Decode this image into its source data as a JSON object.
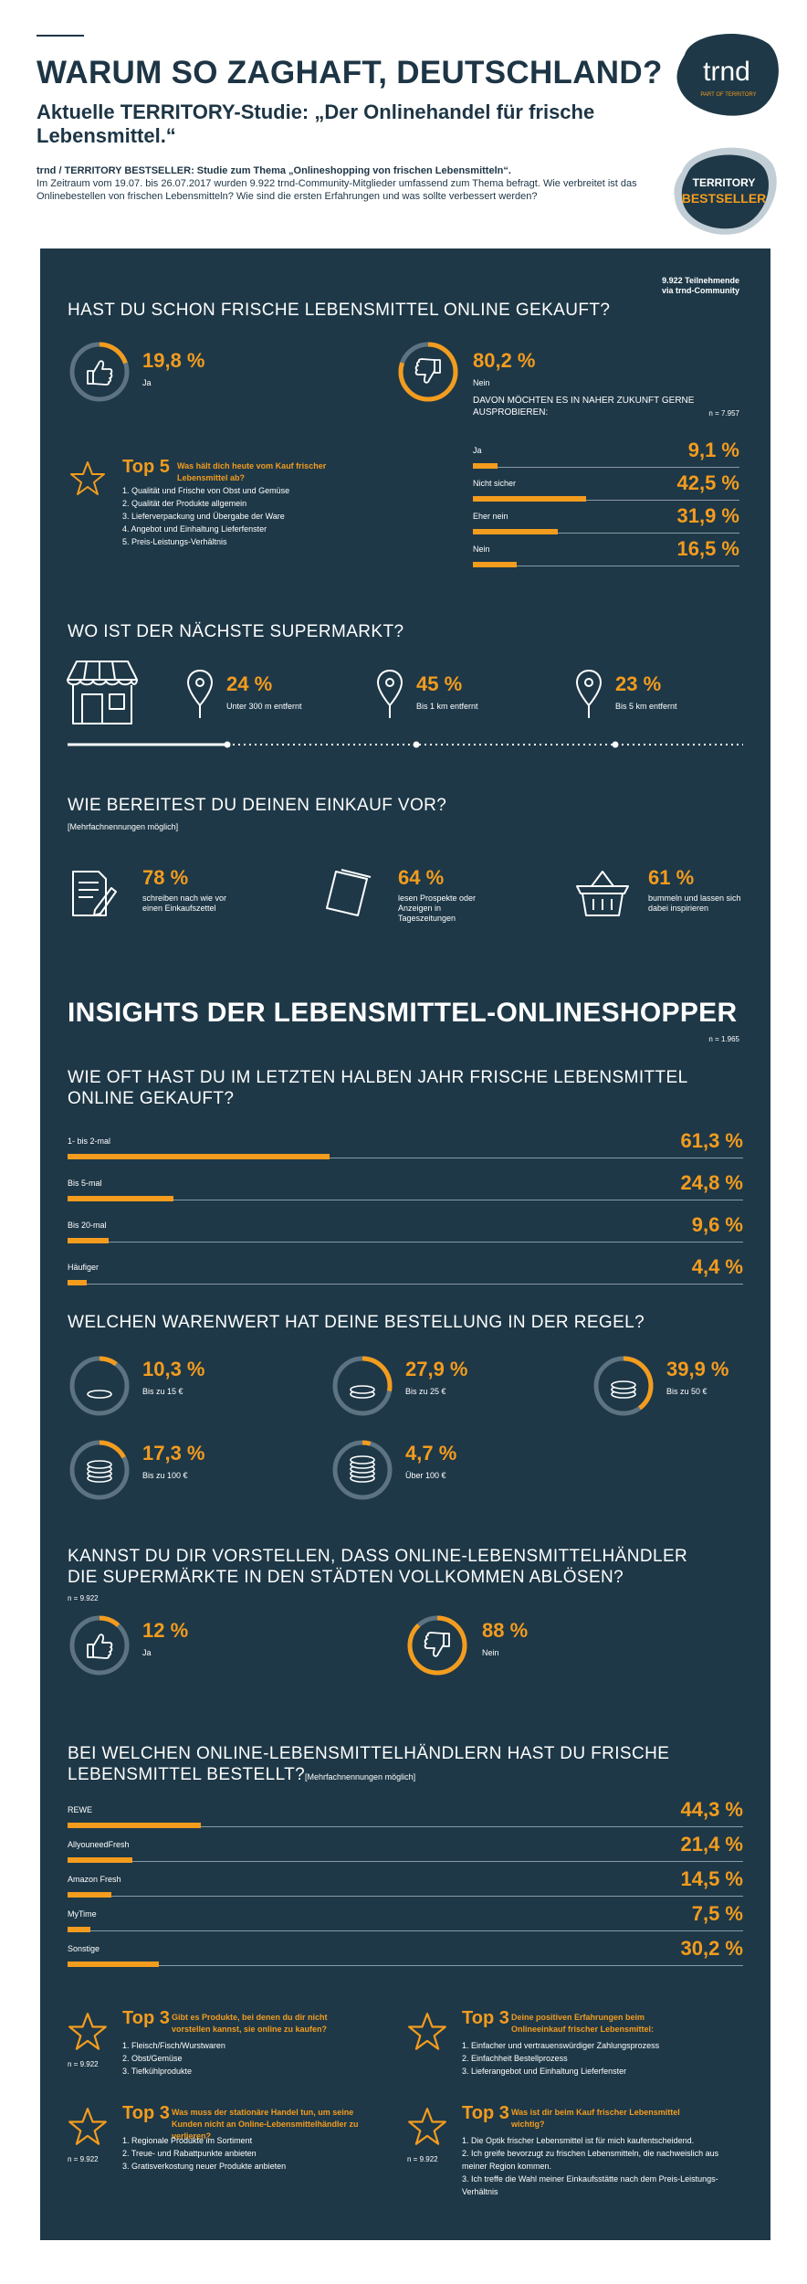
{
  "header": {
    "title": "WARUM SO ZAGHAFT, DEUTSCHLAND?",
    "subtitle": "Aktuelle TERRITORY-Studie: „Der Onlinehandel für frische Lebensmittel.“",
    "intro_bold": "trnd / TERRITORY BESTSELLER: Studie zum Thema „Onlineshopping von frischen Lebensmitteln“.",
    "intro_text": "Im Zeitraum vom 19.07. bis 26.07.2017 wurden 9.922 trnd-Community-Mitglieder umfassend zum Thema befragt. Wie verbreitet ist das Onlinebestellen von frischen Lebensmitteln? Wie sind die ersten Erfahrungen und was sollte verbessert werden?",
    "logo_trnd": "trnd",
    "logo_trnd_sub": "PART OF TERRITORY",
    "logo_territory_1": "TERRITORY",
    "logo_territory_2": "BESTSELLER"
  },
  "participants": {
    "line1": "9.922 Teilnehmende",
    "line2": "via trnd-Community"
  },
  "q1": {
    "title": "HAST DU SCHON FRISCHE LEBENSMITTEL ONLINE GEKAUFT?",
    "yes_pct": "19,8 %",
    "yes_label": "Ja",
    "yes_value": 19.8,
    "no_pct": "80,2 %",
    "no_label": "Nein",
    "no_value": 80.2,
    "future_title": "DAVON MÖCHTEN ES IN NAHER ZUKUNFT GERNE AUSPROBIEREN:",
    "future_n": "n = 7.957",
    "future": [
      {
        "label": "Ja",
        "pct": "9,1 %",
        "value": 9.1
      },
      {
        "label": "Nicht sicher",
        "pct": "42,5 %",
        "value": 42.5
      },
      {
        "label": "Eher nein",
        "pct": "31,9 %",
        "value": 31.9
      },
      {
        "label": "Nein",
        "pct": "16,5 %",
        "value": 16.5
      }
    ],
    "top5_title": "Top 5",
    "top5_q": "Was hält dich heute vom Kauf frischer Lebensmittel ab?",
    "top5_items": [
      "1. Qualität und Frische von Obst und Gemüse",
      "2. Qualität der Produkte allgemein",
      "3. Lieferverpackung und Übergabe der Ware",
      "4. Angebot und Einhaltung Lieferfenster",
      "5. Preis-Leistungs-Verhältnis"
    ]
  },
  "q2": {
    "title": "WO IST DER NÄCHSTE SUPERMARKT?",
    "items": [
      {
        "pct": "24 %",
        "label": "Unter 300 m entfernt"
      },
      {
        "pct": "45 %",
        "label": "Bis 1 km entfernt"
      },
      {
        "pct": "23 %",
        "label": "Bis 5 km entfernt"
      }
    ]
  },
  "q3": {
    "title": "WIE BEREITEST DU DEINEN EINKAUF VOR?",
    "note": "[Mehrfachnennungen möglich]",
    "items": [
      {
        "pct": "78 %",
        "label": "schreiben nach wie vor einen Einkaufszettel"
      },
      {
        "pct": "64 %",
        "label": "lesen Prospekte oder Anzeigen in Tageszeitungen"
      },
      {
        "pct": "61 %",
        "label": "bummeln und lassen sich dabei inspirieren"
      }
    ]
  },
  "insights": {
    "title": "INSIGHTS DER LEBENSMITTEL-ONLINESHOPPER",
    "n": "n = 1.965"
  },
  "q4": {
    "title": "WIE OFT HAST DU IM LETZTEN HALBEN JAHR FRISCHE LEBENSMITTEL ONLINE GEKAUFT?",
    "rows": [
      {
        "label": "1- bis 2-mal",
        "pct": "61,3 %",
        "value": 61.3
      },
      {
        "label": "Bis 5-mal",
        "pct": "24,8 %",
        "value": 24.8
      },
      {
        "label": "Bis 20-mal",
        "pct": "9,6 %",
        "value": 9.6
      },
      {
        "label": "Häufiger",
        "pct": "4,4 %",
        "value": 4.4
      }
    ]
  },
  "q5": {
    "title": "WELCHEN WARENWERT HAT DEINE BESTELLUNG IN DER REGEL?",
    "items": [
      {
        "pct": "10,3 %",
        "label": "Bis zu 15 €",
        "value": 10.3
      },
      {
        "pct": "27,9 %",
        "label": "Bis zu 25 €",
        "value": 27.9
      },
      {
        "pct": "39,9 %",
        "label": "Bis zu 50 €",
        "value": 39.9
      },
      {
        "pct": "17,3 %",
        "label": "Bis zu 100 €",
        "value": 17.3
      },
      {
        "pct": "4,7 %",
        "label": "Über 100 €",
        "value": 4.7
      }
    ]
  },
  "q6": {
    "title_l1": "KANNST DU DIR VORSTELLEN, DASS ONLINE-LEBENSMITTELHÄNDLER",
    "title_l2": "DIE SUPERMÄRKTE IN DEN STÄDTEN VOLLKOMMEN ABLÖSEN?",
    "n": "n = 9.922",
    "yes_pct": "12 %",
    "yes_label": "Ja",
    "yes_value": 12,
    "no_pct": "88 %",
    "no_label": "Nein",
    "no_value": 88
  },
  "q7": {
    "title_l1": "BEI WELCHEN ONLINE-LEBENSMITTELHÄNDLERN HAST DU FRISCHE",
    "title_l2": "LEBENSMITTEL BESTELLT?",
    "note": "[Mehrfachnennungen möglich]",
    "rows": [
      {
        "label": "REWE",
        "pct": "44,3 %",
        "value": 44.3
      },
      {
        "label": "AllyouneedFresh",
        "pct": "21,4 %",
        "value": 21.4
      },
      {
        "label": "Amazon Fresh",
        "pct": "14,5 %",
        "value": 14.5
      },
      {
        "label": "MyTime",
        "pct": "7,5 %",
        "value": 7.5
      },
      {
        "label": "Sonstige",
        "pct": "30,2 %",
        "value": 30.2
      }
    ]
  },
  "top3": [
    {
      "title": "Top 3",
      "q": "Gibt es Produkte, bei denen du dir nicht vorstellen kannst, sie online zu kaufen?",
      "n": "n = 9.922",
      "items": [
        "1. Fleisch/Fisch/Wurstwaren",
        "2. Obst/Gemüse",
        "3. Tiefkühlprodukte"
      ]
    },
    {
      "title": "Top 3",
      "q": "Deine positiven Erfahrungen beim Onlineeinkauf frischer Lebensmittel:",
      "n": "",
      "items": [
        "1. Einfacher und vertrauenswürdiger Zahlungsprozess",
        "2. Einfachheit Bestellprozess",
        "3. Lieferangebot und Einhaltung Lieferfenster"
      ]
    },
    {
      "title": "Top 3",
      "q": "Was muss der stationäre Handel tun, um seine Kunden nicht an Online-Lebensmittelhändler zu verlieren?",
      "n": "n = 9.922",
      "items": [
        "1. Regionale Produkte im Sortiment",
        "2. Treue- und Rabattpunkte anbieten",
        "3. Gratisverkostung neuer Produkte anbieten"
      ]
    },
    {
      "title": "Top 3",
      "q": "Was ist dir beim Kauf frischer Lebensmittel wichtig?",
      "n": "n = 9.922",
      "items": [
        "1. Die Optik frischer Lebensmittel ist für mich kaufentscheidend.",
        "2. Ich greife bevorzugt zu frischen Lebensmitteln, die nachweislich aus meiner Region kommen.",
        "3. Ich treffe die Wahl meiner Einkaufsstätte nach dem Preis-Leistungs-Verhältnis"
      ]
    }
  ],
  "colors": {
    "panel": "#1e3847",
    "accent": "#f39c1e",
    "ring_track": "#5d7382"
  }
}
